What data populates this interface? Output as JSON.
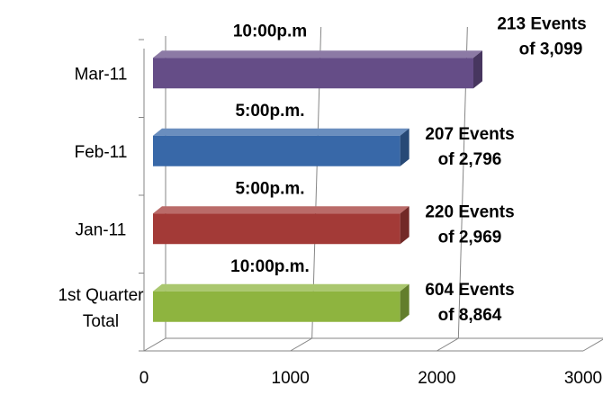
{
  "chart_data": {
    "type": "bar",
    "orientation": "horizontal",
    "three_d": true,
    "categories": [
      "1st Quarter Total",
      "Jan-11",
      "Feb-11",
      "Mar-11"
    ],
    "values": [
      1750,
      1750,
      1750,
      2250
    ],
    "colors": [
      "#8eb43f",
      "#a33a37",
      "#3868a8",
      "#654d87"
    ],
    "data_labels": [
      {
        "time": "10:00p.m.",
        "events": "604 Events",
        "total": "of 8,864"
      },
      {
        "time": "5:00p.m.",
        "events": "220 Events",
        "total": "of 2,969"
      },
      {
        "time": "5:00p.m.",
        "events": "207 Events",
        "total": "of 2,796"
      },
      {
        "time": "10:00p.m",
        "events": "213 Events",
        "total": "of 3,099"
      }
    ],
    "xlim": [
      0,
      3000
    ],
    "xticks": [
      "0",
      "1000",
      "2000",
      "3000"
    ],
    "grid": true,
    "legend": "none"
  }
}
